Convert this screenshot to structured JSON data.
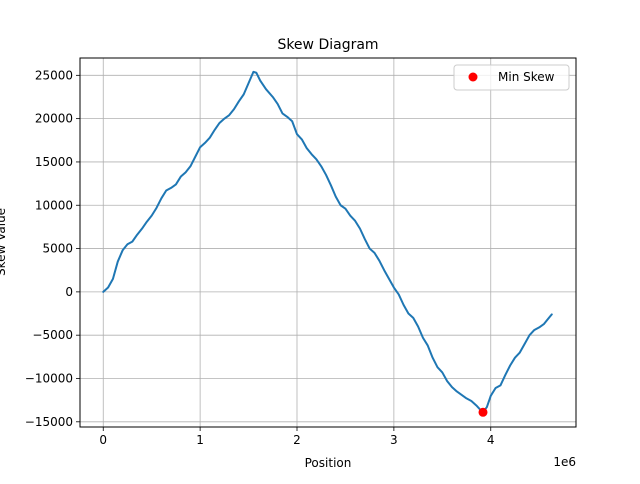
{
  "chart_data": {
    "type": "line",
    "title": "Skew Diagram",
    "xlabel": "Position",
    "ylabel": "Skew Value",
    "x_offset_label": "1e6",
    "xlim": [
      -240000,
      4880000
    ],
    "ylim": [
      -15600,
      27000
    ],
    "x_ticks": [
      0,
      1000000,
      2000000,
      3000000,
      4000000
    ],
    "x_tick_labels": [
      "0",
      "1",
      "2",
      "3",
      "4"
    ],
    "y_ticks": [
      -15000,
      -10000,
      -5000,
      0,
      5000,
      10000,
      15000,
      20000,
      25000
    ],
    "y_tick_labels": [
      "−15000",
      "−10000",
      "−5000",
      "0",
      "5000",
      "10000",
      "15000",
      "20000",
      "25000"
    ],
    "grid": true,
    "legend_position": "top-right",
    "series": [
      {
        "name": "",
        "type": "line",
        "color": "#1f77b4",
        "points": [
          [
            0,
            0
          ],
          [
            50000,
            500
          ],
          [
            100000,
            1500
          ],
          [
            150000,
            3500
          ],
          [
            200000,
            4800
          ],
          [
            250000,
            5500
          ],
          [
            300000,
            5800
          ],
          [
            350000,
            6600
          ],
          [
            400000,
            7300
          ],
          [
            450000,
            8100
          ],
          [
            500000,
            8800
          ],
          [
            550000,
            9700
          ],
          [
            600000,
            10800
          ],
          [
            650000,
            11700
          ],
          [
            700000,
            12000
          ],
          [
            750000,
            12400
          ],
          [
            800000,
            13300
          ],
          [
            850000,
            13800
          ],
          [
            900000,
            14500
          ],
          [
            950000,
            15600
          ],
          [
            1000000,
            16700
          ],
          [
            1050000,
            17200
          ],
          [
            1100000,
            17800
          ],
          [
            1150000,
            18700
          ],
          [
            1200000,
            19500
          ],
          [
            1250000,
            20000
          ],
          [
            1300000,
            20400
          ],
          [
            1350000,
            21100
          ],
          [
            1400000,
            22000
          ],
          [
            1450000,
            22800
          ],
          [
            1500000,
            24100
          ],
          [
            1550000,
            25400
          ],
          [
            1580000,
            25300
          ],
          [
            1620000,
            24400
          ],
          [
            1680000,
            23400
          ],
          [
            1750000,
            22500
          ],
          [
            1800000,
            21700
          ],
          [
            1850000,
            20600
          ],
          [
            1900000,
            20200
          ],
          [
            1950000,
            19700
          ],
          [
            2000000,
            18200
          ],
          [
            2050000,
            17600
          ],
          [
            2100000,
            16600
          ],
          [
            2150000,
            15900
          ],
          [
            2200000,
            15300
          ],
          [
            2250000,
            14500
          ],
          [
            2300000,
            13500
          ],
          [
            2350000,
            12300
          ],
          [
            2400000,
            11000
          ],
          [
            2450000,
            10000
          ],
          [
            2500000,
            9600
          ],
          [
            2550000,
            8800
          ],
          [
            2600000,
            8200
          ],
          [
            2650000,
            7300
          ],
          [
            2700000,
            6100
          ],
          [
            2750000,
            5000
          ],
          [
            2800000,
            4500
          ],
          [
            2850000,
            3600
          ],
          [
            2900000,
            2500
          ],
          [
            2950000,
            1500
          ],
          [
            3000000,
            500
          ],
          [
            3050000,
            -300
          ],
          [
            3100000,
            -1500
          ],
          [
            3150000,
            -2500
          ],
          [
            3200000,
            -3000
          ],
          [
            3250000,
            -4000
          ],
          [
            3300000,
            -5300
          ],
          [
            3350000,
            -6200
          ],
          [
            3400000,
            -7600
          ],
          [
            3450000,
            -8700
          ],
          [
            3500000,
            -9300
          ],
          [
            3550000,
            -10300
          ],
          [
            3600000,
            -11000
          ],
          [
            3650000,
            -11500
          ],
          [
            3700000,
            -11900
          ],
          [
            3750000,
            -12300
          ],
          [
            3800000,
            -12600
          ],
          [
            3850000,
            -13100
          ],
          [
            3900000,
            -13700
          ],
          [
            3920000,
            -13900
          ],
          [
            3960000,
            -13300
          ],
          [
            4000000,
            -12000
          ],
          [
            4050000,
            -11100
          ],
          [
            4100000,
            -10800
          ],
          [
            4150000,
            -9600
          ],
          [
            4200000,
            -8500
          ],
          [
            4250000,
            -7600
          ],
          [
            4300000,
            -7000
          ],
          [
            4350000,
            -6000
          ],
          [
            4400000,
            -5000
          ],
          [
            4450000,
            -4400
          ],
          [
            4500000,
            -4100
          ],
          [
            4550000,
            -3700
          ],
          [
            4600000,
            -3000
          ],
          [
            4630000,
            -2600
          ]
        ]
      },
      {
        "name": "Min Skew",
        "type": "scatter",
        "color": "#ff0000",
        "points": [
          [
            3920000,
            -13900
          ]
        ]
      }
    ]
  }
}
